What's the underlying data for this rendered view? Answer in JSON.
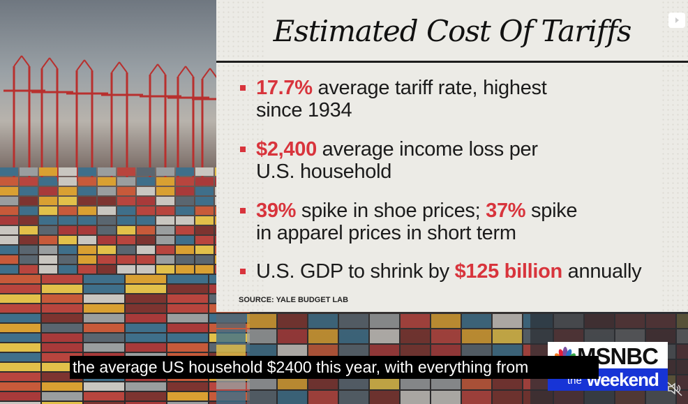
{
  "graphic": {
    "title": "Estimated Cost Of Tariffs",
    "bullets": [
      {
        "highlight": "17.7%",
        "line1_rest": " average tariff rate, highest",
        "line2": "since 1934"
      },
      {
        "highlight": "$2,400",
        "line1_rest": " average income loss per",
        "line2": "U.S. household"
      },
      {
        "highlight": "39%",
        "line1_mid": " spike in shoe prices; ",
        "highlight2": "37%",
        "line1_rest": " spike",
        "line2": "in apparel prices in short term"
      },
      {
        "prefix": "U.S. GDP to shrink by ",
        "highlight": "$125 billion",
        "line1_rest": " annually"
      }
    ],
    "source": "SOURCE: YALE BUDGET LAB",
    "accent_color": "#d8343c"
  },
  "caption": "the average US household $2400 this year, with everything from",
  "logo": {
    "network": "MSNBC",
    "show_the": "the",
    "show_name": "weekend",
    "brand_color": "#1734d6"
  },
  "controls": {
    "mute_icon": "speaker-muted-icon",
    "corner_button_icon": "play-icon"
  }
}
